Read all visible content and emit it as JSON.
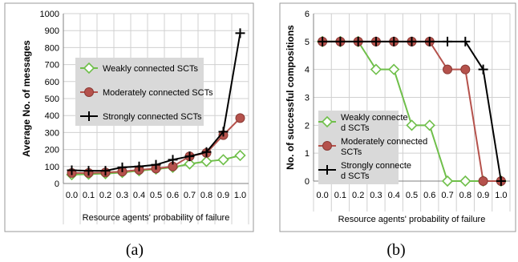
{
  "chart_data": [
    {
      "type": "line",
      "panel_label": "(a)",
      "xlabel": "Resource agents' probability of failure",
      "ylabel": "Average No. of messages",
      "categories": [
        "0.0",
        "0.1",
        "0.2",
        "0.3",
        "0.4",
        "0.5",
        "0.6",
        "0.7",
        "0.8",
        "0.9",
        "1.0"
      ],
      "ylim": [
        0,
        1000
      ],
      "yticks": [
        "0",
        "100",
        "200",
        "300",
        "400",
        "500",
        "600",
        "700",
        "800",
        "900",
        "1000"
      ],
      "grid": true,
      "legend_position": "center-left",
      "series": [
        {
          "name": "Weakly connected SCTs",
          "color": "#6fbf4a",
          "marker": "diamond",
          "values": [
            52,
            55,
            58,
            65,
            75,
            85,
            95,
            115,
            130,
            140,
            165
          ]
        },
        {
          "name": "Moderately connected SCTs",
          "color": "#b5524c",
          "marker": "circle",
          "values": [
            62,
            62,
            65,
            70,
            80,
            88,
            100,
            160,
            180,
            285,
            385
          ]
        },
        {
          "name": "Strongly connected SCTs",
          "color": "#000000",
          "marker": "plus",
          "values": [
            78,
            75,
            75,
            95,
            100,
            110,
            140,
            160,
            185,
            305,
            885
          ]
        }
      ]
    },
    {
      "type": "line",
      "panel_label": "(b)",
      "xlabel": "Resource agents' probability of failure",
      "ylabel": "No. of successful compositions",
      "categories": [
        "0.0",
        "0.1",
        "0.2",
        "0.3",
        "0.4",
        "0.5",
        "0.6",
        "0.7",
        "0.8",
        "0.9",
        "1.0"
      ],
      "ylim": [
        0,
        6
      ],
      "yticks": [
        "0",
        "1",
        "2",
        "3",
        "4",
        "5",
        "6"
      ],
      "grid": true,
      "legend_position": "bottom-left",
      "series": [
        {
          "name": "Weakly connected SCTs",
          "color": "#6fbf4a",
          "marker": "diamond",
          "values": [
            5,
            5,
            5,
            4,
            4,
            2,
            2,
            0,
            0,
            0,
            0
          ]
        },
        {
          "name": "Moderately connected SCTs",
          "color": "#b5524c",
          "marker": "circle",
          "values": [
            5,
            5,
            5,
            5,
            5,
            5,
            5,
            4,
            4,
            0,
            0
          ]
        },
        {
          "name": "Strongly connected SCTs",
          "color": "#000000",
          "marker": "plus",
          "values": [
            5,
            5,
            5,
            5,
            5,
            5,
            5,
            5,
            5,
            4,
            0
          ]
        }
      ]
    }
  ]
}
